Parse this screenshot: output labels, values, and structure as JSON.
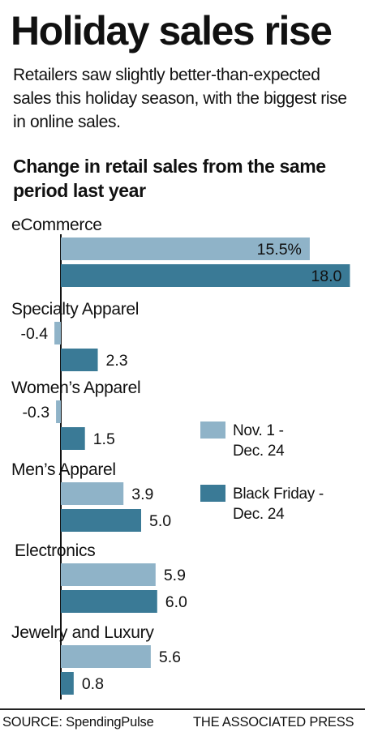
{
  "header": {
    "title": "Holiday sales rise",
    "subtitle": "Retailers saw slightly better-than-expected sales this holiday season, with the biggest rise in online sales."
  },
  "colors": {
    "series_1": "#8fb3c8",
    "series_2": "#3a7a96",
    "axis": "#111111",
    "text": "#111111"
  },
  "chart_data": {
    "type": "bar",
    "orientation": "horizontal",
    "title": "Change in retail sales from the same period last year",
    "categories": [
      "eCommerce",
      "Specialty Apparel",
      "Women’s Apparel",
      "Men’s Apparel",
      "Electronics",
      "Jewelry and Luxury"
    ],
    "series": [
      {
        "name": "Nov. 1 - Dec. 24",
        "values": [
          15.5,
          -0.4,
          -0.3,
          3.9,
          5.9,
          5.6
        ],
        "labels": [
          "15.5%",
          "-0.4",
          "-0.3",
          "3.9",
          "5.9",
          "5.6"
        ]
      },
      {
        "name": "Black Friday - Dec. 24",
        "values": [
          18.0,
          2.3,
          1.5,
          5.0,
          6.0,
          0.8
        ],
        "labels": [
          "18.0",
          "2.3",
          "1.5",
          "5.0",
          "6.0",
          "0.8"
        ]
      }
    ],
    "xlim": [
      -0.4,
      18.0
    ],
    "grid": false,
    "legend_position": "middle-right",
    "legend": [
      {
        "line1": "Nov. 1 -",
        "line2": "Dec. 24"
      },
      {
        "line1": "Black Friday -",
        "line2": "Dec. 24"
      }
    ]
  },
  "footer": {
    "source": "SOURCE: SpendingPulse",
    "credit": "THE ASSOCIATED PRESS"
  }
}
